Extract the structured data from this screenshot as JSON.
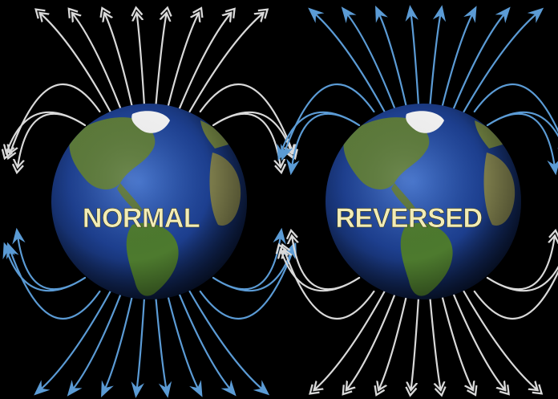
{
  "labels": {
    "normal": "NORMAL",
    "reversed": "REVERSED"
  },
  "colors": {
    "background": "#000000",
    "field_white": "#d9d9d9",
    "field_blue": "#5b9bd5",
    "label_fill": "#f2ecb6",
    "ocean": "#1d3f8f",
    "land": "#4f6f34"
  },
  "panels": [
    {
      "name": "normal",
      "top_field": "white",
      "bottom_field": "blue",
      "top_arrow_direction": "inward",
      "bottom_arrow_direction": "outward"
    },
    {
      "name": "reversed",
      "top_field": "blue",
      "bottom_field": "white",
      "top_arrow_direction": "outward",
      "bottom_arrow_direction": "inward"
    }
  ]
}
